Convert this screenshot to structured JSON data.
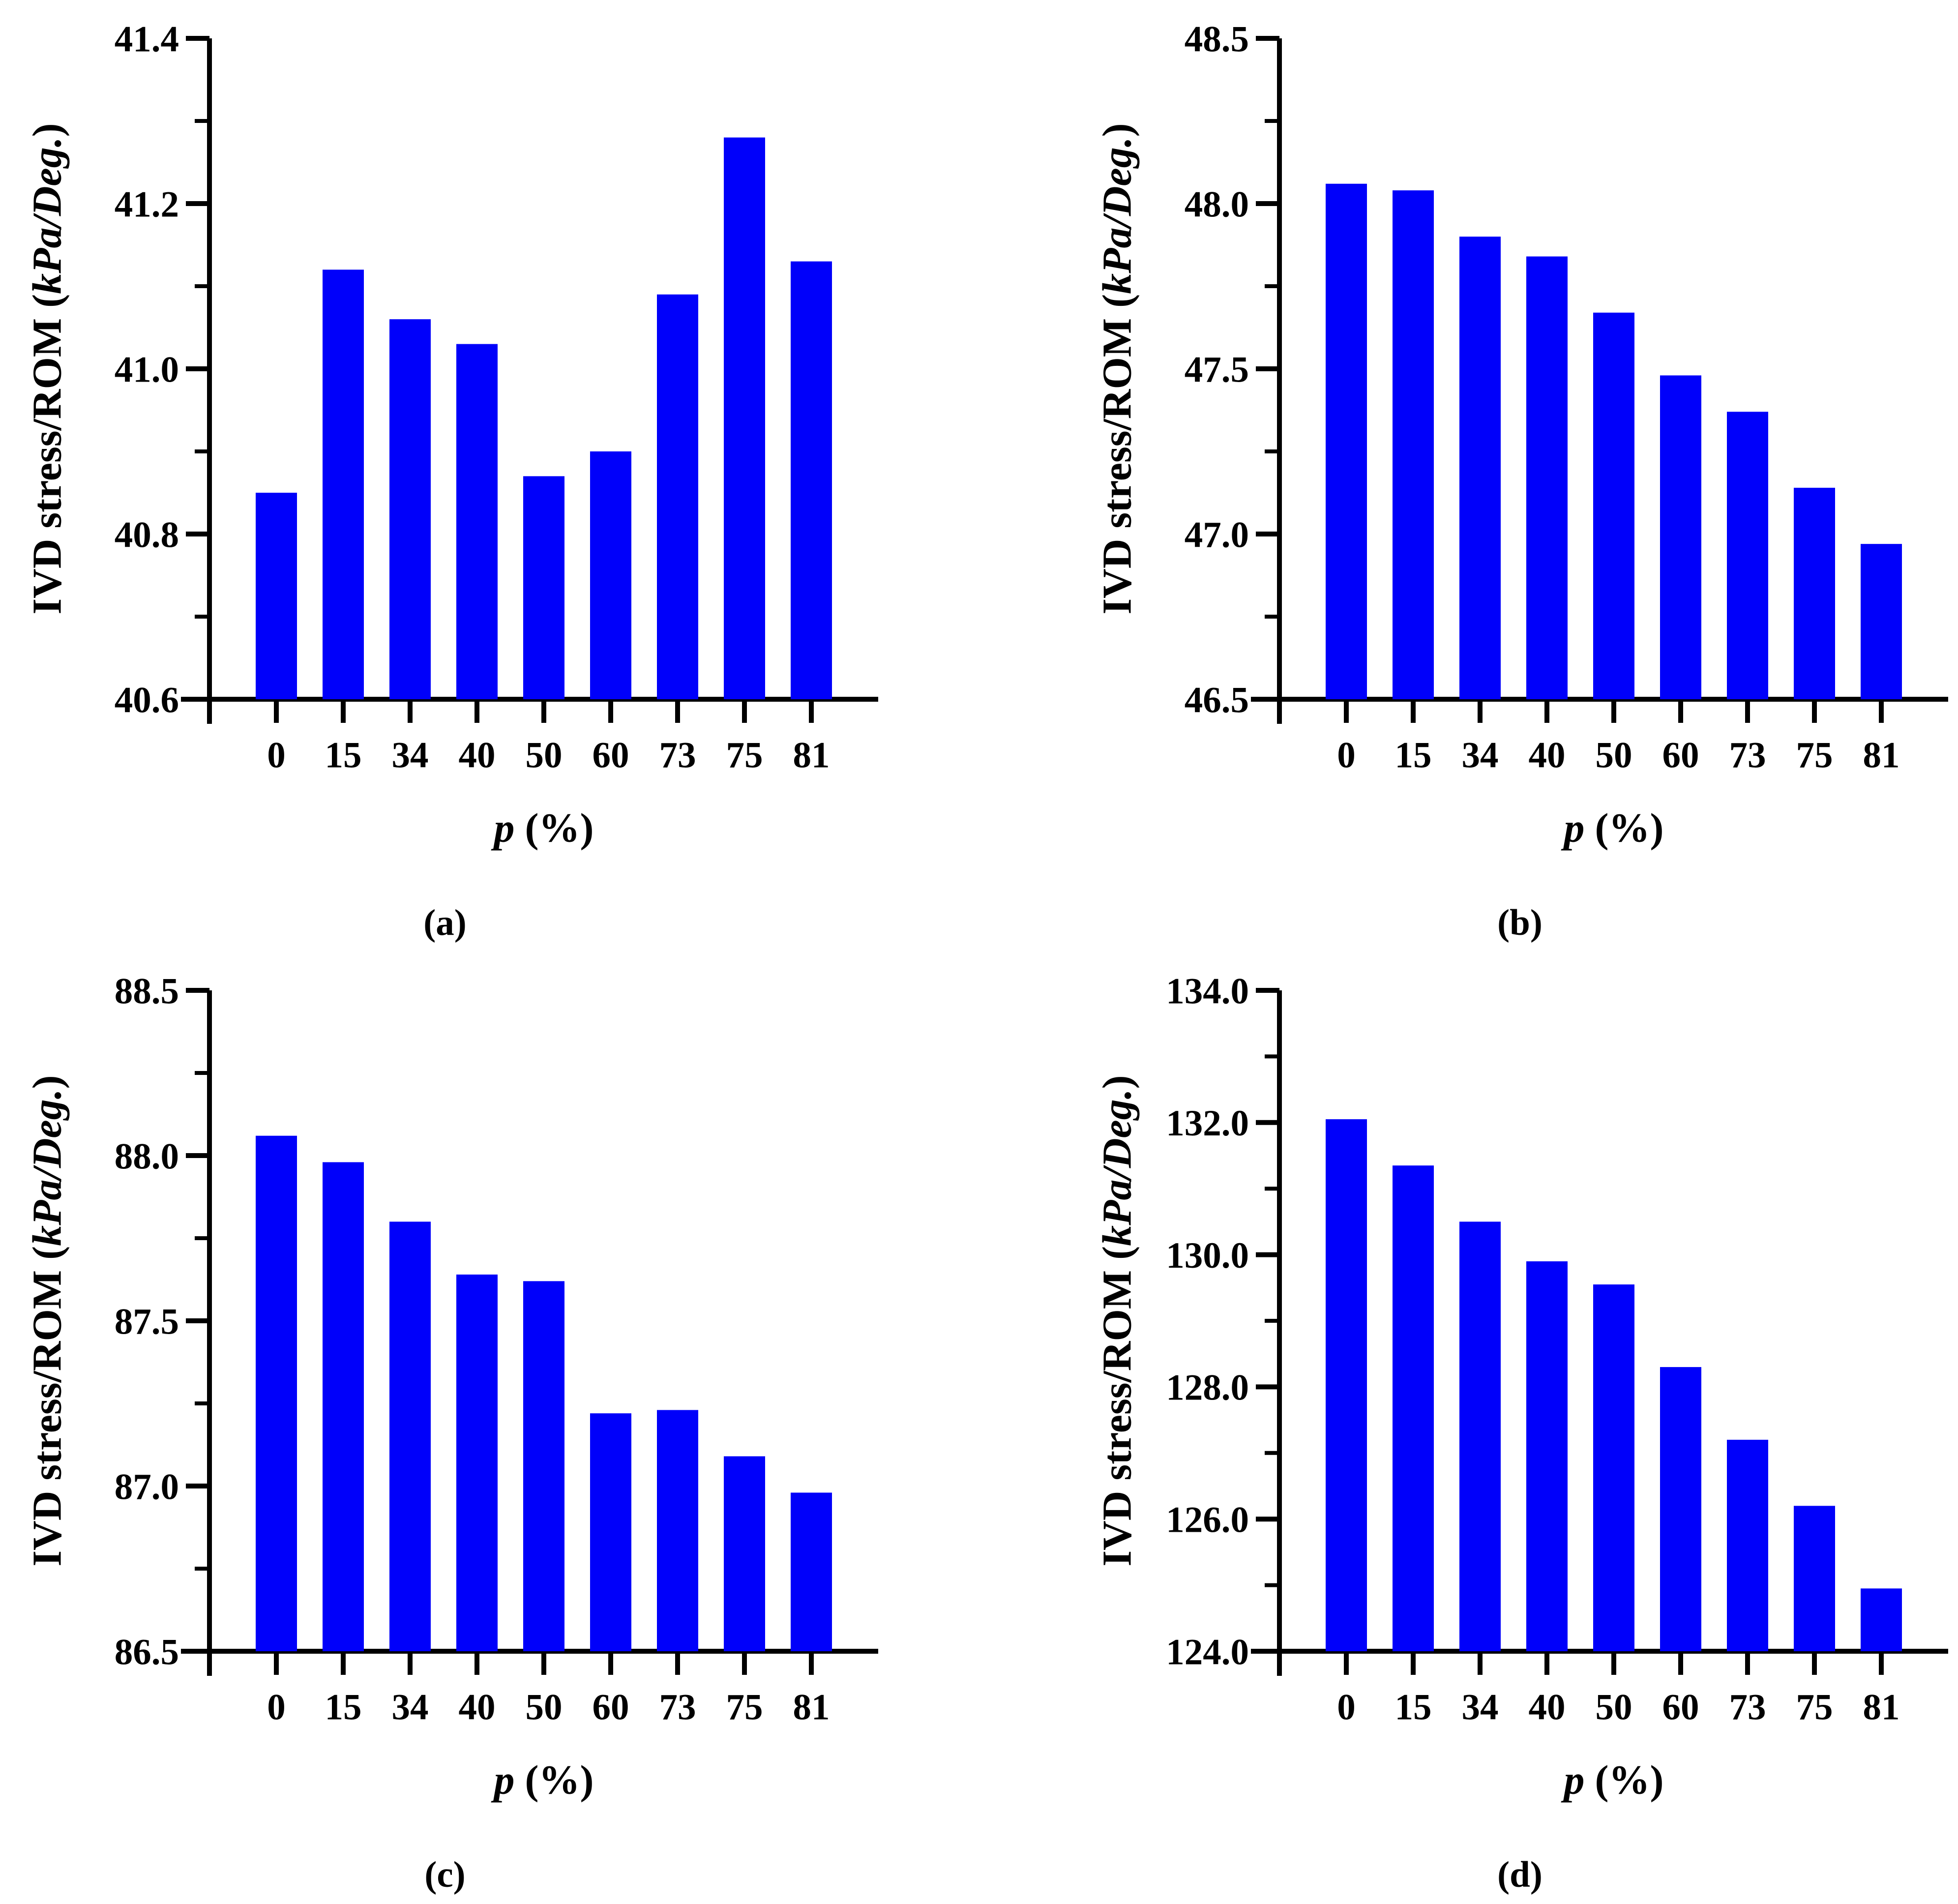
{
  "figure": {
    "ylabel": {
      "prefix": "IVD stress/ROM (",
      "italic": "kPa/Deg.",
      "suffix": ")"
    },
    "xlabel": {
      "italic": "p",
      "rest": " (%)"
    },
    "bar_color": "#0000FA",
    "axis_color": "#000000",
    "background_color": "#FFFFFF"
  },
  "chart_data": [
    {
      "id": "a",
      "type": "bar",
      "caption": "(a)",
      "title": "",
      "xlabel": "p (%)",
      "ylabel": "IVD stress/ROM (kPa/Deg.)",
      "categories": [
        "0",
        "15",
        "34",
        "40",
        "50",
        "60",
        "73",
        "75",
        "81"
      ],
      "values": [
        40.85,
        41.12,
        41.06,
        41.03,
        40.87,
        40.9,
        41.09,
        41.28,
        41.13
      ],
      "ylim": [
        40.6,
        41.4
      ],
      "ytick_step": 0.2,
      "yminor_step": 0.1,
      "ytick_labels": [
        "40.6",
        "40.8",
        "41.0",
        "41.2",
        "41.4"
      ],
      "grid": "off",
      "legend": "none"
    },
    {
      "id": "b",
      "type": "bar",
      "caption": "(b)",
      "title": "",
      "xlabel": "p (%)",
      "ylabel": "IVD stress/ROM (kPa/Deg.)",
      "categories": [
        "0",
        "15",
        "34",
        "40",
        "50",
        "60",
        "73",
        "75",
        "81"
      ],
      "values": [
        48.06,
        48.04,
        47.9,
        47.84,
        47.67,
        47.48,
        47.37,
        47.14,
        46.97
      ],
      "ylim": [
        46.5,
        48.5
      ],
      "ytick_step": 0.5,
      "yminor_step": 0.25,
      "ytick_labels": [
        "46.5",
        "47.0",
        "47.5",
        "48.0",
        "48.5"
      ],
      "grid": "off",
      "legend": "none"
    },
    {
      "id": "c",
      "type": "bar",
      "caption": "(c)",
      "title": "",
      "xlabel": "p (%)",
      "ylabel": "IVD stress/ROM (kPa/Deg.)",
      "categories": [
        "0",
        "15",
        "34",
        "40",
        "50",
        "60",
        "73",
        "75",
        "81"
      ],
      "values": [
        88.06,
        87.98,
        87.8,
        87.64,
        87.62,
        87.22,
        87.23,
        87.09,
        86.98
      ],
      "ylim": [
        86.5,
        88.5
      ],
      "ytick_step": 0.5,
      "yminor_step": 0.25,
      "ytick_labels": [
        "86.5",
        "87.0",
        "87.5",
        "88.0",
        "88.5"
      ],
      "grid": "off",
      "legend": "none"
    },
    {
      "id": "d",
      "type": "bar",
      "caption": "(d)",
      "title": "",
      "xlabel": "p (%)",
      "ylabel": "IVD stress/ROM (kPa/Deg.)",
      "categories": [
        "0",
        "15",
        "34",
        "40",
        "50",
        "60",
        "73",
        "75",
        "81"
      ],
      "values": [
        132.05,
        131.35,
        130.5,
        129.9,
        129.55,
        128.3,
        127.2,
        126.2,
        124.95
      ],
      "ylim": [
        124.0,
        134.0
      ],
      "ytick_step": 2.0,
      "yminor_step": 1.0,
      "ytick_labels": [
        "124.0",
        "126.0",
        "128.0",
        "130.0",
        "132.0",
        "134.0"
      ],
      "grid": "off",
      "legend": "none"
    }
  ]
}
